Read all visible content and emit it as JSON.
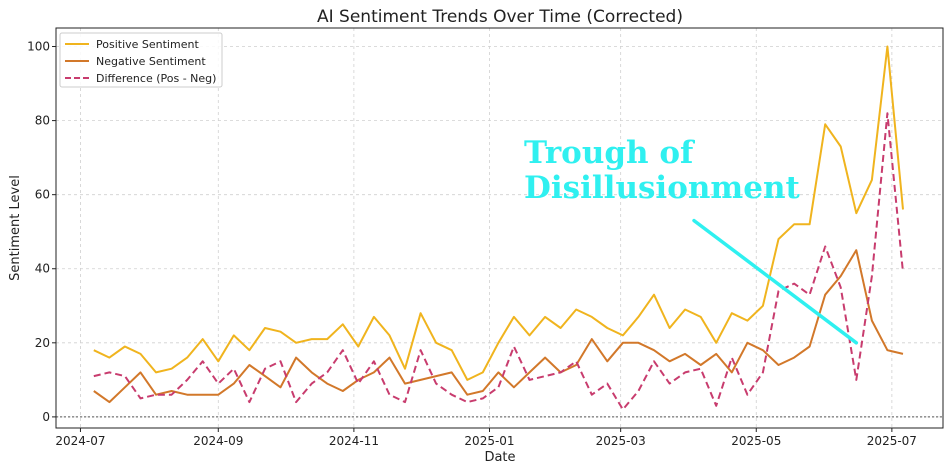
{
  "chart_data": {
    "type": "line",
    "title": "AI Sentiment Trends Over Time (Corrected)",
    "xlabel": "Date",
    "ylabel": "Sentiment Level",
    "xlim": [
      "2024-06-20",
      "2025-07-24"
    ],
    "ylim": [
      -3,
      105
    ],
    "yticks": [
      0,
      20,
      40,
      60,
      80,
      100
    ],
    "xticks": [
      "2024-07",
      "2024-09",
      "2024-11",
      "2025-01",
      "2025-03",
      "2025-05",
      "2025-07"
    ],
    "grid": true,
    "legend_position": "top-left",
    "x": [
      "2024-07-07",
      "2024-07-14",
      "2024-07-21",
      "2024-07-28",
      "2024-08-04",
      "2024-08-11",
      "2024-08-18",
      "2024-08-25",
      "2024-09-01",
      "2024-09-08",
      "2024-09-15",
      "2024-09-22",
      "2024-09-29",
      "2024-10-06",
      "2024-10-13",
      "2024-10-20",
      "2024-10-27",
      "2024-11-03",
      "2024-11-10",
      "2024-11-17",
      "2024-11-24",
      "2024-12-01",
      "2024-12-08",
      "2024-12-15",
      "2024-12-22",
      "2024-12-29",
      "2025-01-05",
      "2025-01-12",
      "2025-01-19",
      "2025-01-26",
      "2025-02-02",
      "2025-02-09",
      "2025-02-16",
      "2025-02-23",
      "2025-03-02",
      "2025-03-09",
      "2025-03-16",
      "2025-03-23",
      "2025-03-30",
      "2025-04-06",
      "2025-04-13",
      "2025-04-20",
      "2025-04-27",
      "2025-05-04",
      "2025-05-11",
      "2025-05-18",
      "2025-05-25",
      "2025-06-01",
      "2025-06-08",
      "2025-06-15",
      "2025-06-22",
      "2025-06-29",
      "2025-07-06"
    ],
    "series": [
      {
        "name": "Positive Sentiment",
        "color": "#f0b41e",
        "dash": false,
        "values": [
          18,
          16,
          19,
          17,
          12,
          13,
          16,
          21,
          15,
          22,
          18,
          24,
          23,
          20,
          21,
          21,
          25,
          19,
          27,
          22,
          13,
          28,
          20,
          18,
          10,
          12,
          20,
          27,
          22,
          27,
          24,
          29,
          27,
          24,
          22,
          27,
          33,
          24,
          29,
          27,
          20,
          28,
          26,
          30,
          48,
          52,
          52,
          79,
          73,
          55,
          64,
          100,
          56
        ]
      },
      {
        "name": "Negative Sentiment",
        "color": "#d2782a",
        "dash": false,
        "values": [
          7,
          4,
          8,
          12,
          6,
          7,
          6,
          6,
          6,
          9,
          14,
          11,
          8,
          16,
          12,
          9,
          7,
          10,
          12,
          16,
          9,
          10,
          11,
          12,
          6,
          7,
          12,
          8,
          12,
          16,
          12,
          14,
          21,
          15,
          20,
          20,
          18,
          15,
          17,
          14,
          17,
          12,
          20,
          18,
          14,
          16,
          19,
          33,
          38,
          45,
          26,
          18,
          17
        ]
      },
      {
        "name": "Difference (Pos - Neg)",
        "color": "#c83c6e",
        "dash": true,
        "values": [
          11,
          12,
          11,
          5,
          6,
          6,
          10,
          15,
          9,
          13,
          4,
          13,
          15,
          4,
          9,
          12,
          18,
          9,
          15,
          6,
          4,
          18,
          9,
          6,
          4,
          5,
          8,
          19,
          10,
          11,
          12,
          15,
          6,
          9,
          2,
          7,
          15,
          9,
          12,
          13,
          3,
          16,
          6,
          12,
          34,
          36,
          33,
          46,
          35,
          10,
          38,
          82,
          39
        ]
      }
    ],
    "annotation": {
      "text_line1": "Trough of",
      "text_line2": "Disillusionment",
      "color": "#2ff0f0",
      "arrow_from": [
        "2025-04-03",
        53
      ],
      "arrow_to": [
        "2025-06-15",
        20
      ]
    }
  }
}
